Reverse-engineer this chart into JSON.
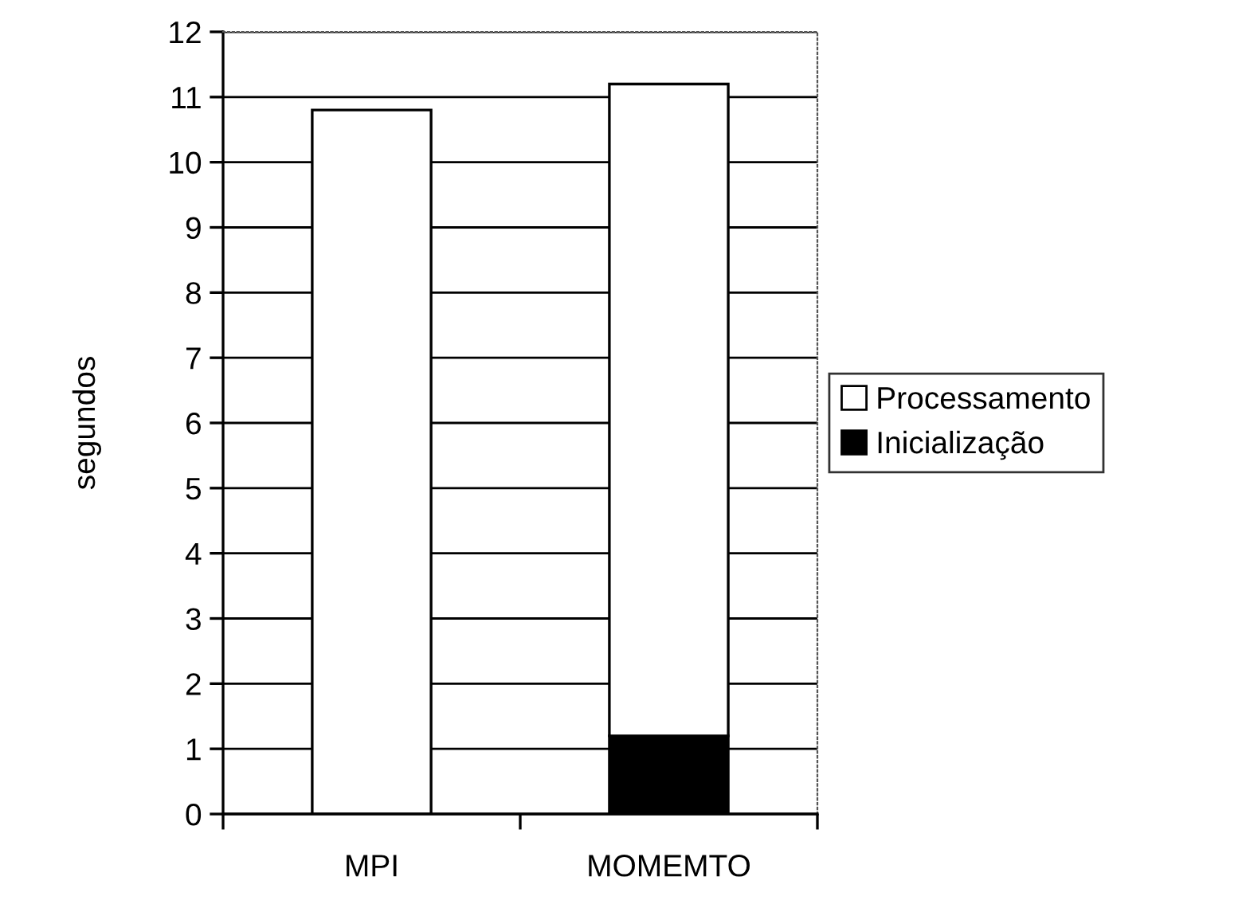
{
  "chart_data": {
    "type": "bar",
    "stacked": true,
    "ylabel": "segundos",
    "categories": [
      "MPI",
      "MOMEMTO"
    ],
    "series": [
      {
        "name": "Inicialização",
        "color": "#000000",
        "values": [
          0,
          1.2
        ]
      },
      {
        "name": "Processamento",
        "color": "#ffffff",
        "values": [
          10.8,
          10.0
        ]
      }
    ],
    "ylim": [
      0,
      12
    ],
    "yticks": [
      0,
      1,
      2,
      3,
      4,
      5,
      6,
      7,
      8,
      9,
      10,
      11,
      12
    ],
    "grid": "y",
    "legend": "right"
  }
}
